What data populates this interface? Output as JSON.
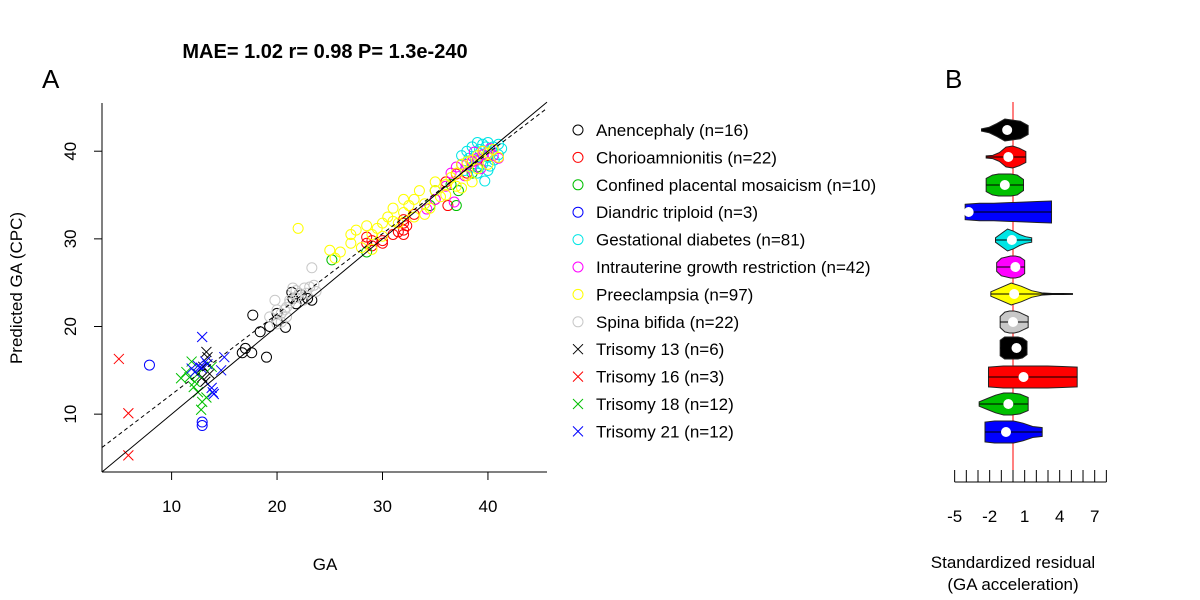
{
  "chart_data": [
    {
      "type": "scatter",
      "panel_label": "A",
      "title": "MAE= 1.02  r= 0.98  P= 1.3e-240",
      "xlabel": "GA",
      "ylabel": "Predicted GA (CPC)",
      "xlim": [
        3.4,
        45.6
      ],
      "ylim": [
        3.4,
        45.5
      ],
      "xticks": [
        10,
        20,
        30,
        40
      ],
      "yticks": [
        10,
        20,
        30,
        40
      ],
      "grid": false,
      "legend_position": "right",
      "lines": [
        {
          "style": "solid",
          "slope": 1,
          "intercept": 0
        },
        {
          "style": "dashed",
          "slope": 0.917,
          "intercept": 3.08
        }
      ],
      "series": [
        {
          "name": "Anencephaly (n=16)",
          "color": "#000000",
          "marker": "circle",
          "points": [
            [
              17.7,
              21.3
            ],
            [
              17,
              17.5
            ],
            [
              16.7,
              17
            ],
            [
              17.6,
              17
            ],
            [
              19,
              16.5
            ],
            [
              18.4,
              19.4
            ],
            [
              19.3,
              20
            ],
            [
              20,
              21.5
            ],
            [
              20,
              20.7
            ],
            [
              20.8,
              19.9
            ],
            [
              21.4,
              23.9
            ],
            [
              21.8,
              22.6
            ],
            [
              22.3,
              23.6
            ],
            [
              22.9,
              23.2
            ],
            [
              23.3,
              23
            ],
            [
              21.5,
              23.2
            ]
          ]
        },
        {
          "name": "Chorioamnionitis (n=22)",
          "color": "#ff0000",
          "marker": "circle",
          "points": [
            [
              28.5,
              29.5
            ],
            [
              28.5,
              30.2
            ],
            [
              29,
              29.2
            ],
            [
              29,
              29.8
            ],
            [
              30,
              29.5
            ],
            [
              30,
              29.8
            ],
            [
              31,
              30.5
            ],
            [
              32,
              31.8
            ],
            [
              32,
              32.2
            ],
            [
              32,
              30.5
            ],
            [
              32.3,
              31.5
            ],
            [
              36.2,
              33.8
            ],
            [
              35,
              34.5
            ],
            [
              31.5,
              30.8
            ],
            [
              33,
              32.8
            ],
            [
              38,
              37.5
            ],
            [
              39,
              39
            ],
            [
              37,
              37.4
            ],
            [
              36,
              36.5
            ],
            [
              40,
              39.5
            ],
            [
              38.5,
              38.8
            ],
            [
              32,
              31
            ]
          ]
        },
        {
          "name": "Confined placental mosaicism (n=10)",
          "color": "#00c000",
          "marker": "circle",
          "points": [
            [
              25.2,
              27.6
            ],
            [
              28.5,
              28.5
            ],
            [
              34.5,
              33.8
            ],
            [
              37,
              33.8
            ],
            [
              37.2,
              35.5
            ],
            [
              36.5,
              36.2
            ],
            [
              38.5,
              37.5
            ],
            [
              37.5,
              38.5
            ],
            [
              35,
              35.5
            ],
            [
              39,
              38.2
            ]
          ]
        },
        {
          "name": "Diandric triploid (n=3)",
          "color": "#0000ff",
          "marker": "circle",
          "points": [
            [
              7.9,
              15.6
            ],
            [
              12.9,
              9.1
            ],
            [
              12.9,
              8.7
            ]
          ]
        },
        {
          "name": "Gestational diabetes (n=81)",
          "color": "#00e5e5",
          "marker": "circle",
          "points": [
            [
              37.5,
              39.5
            ],
            [
              38,
              40
            ],
            [
              38.5,
              40.5
            ],
            [
              39,
              41
            ],
            [
              39.5,
              40.8
            ],
            [
              40,
              41
            ],
            [
              40.5,
              40.5
            ],
            [
              41,
              40.8
            ],
            [
              39,
              39.5
            ],
            [
              39.5,
              38.5
            ],
            [
              40,
              39.3
            ],
            [
              38.5,
              38.2
            ],
            [
              39,
              37.5
            ],
            [
              40,
              37.8
            ],
            [
              39.7,
              36.6
            ],
            [
              38.8,
              39
            ],
            [
              40.3,
              39.8
            ],
            [
              41.3,
              40.3
            ],
            [
              37.8,
              37.8
            ],
            [
              39.2,
              40.2
            ],
            [
              40.6,
              39
            ],
            [
              38.2,
              39.2
            ],
            [
              39.8,
              40.5
            ],
            [
              40.2,
              38.3
            ],
            [
              41,
              39.6
            ]
          ]
        },
        {
          "name": "Intrauterine growth restriction (n=42)",
          "color": "#ff00ff",
          "marker": "circle",
          "points": [
            [
              35,
              34.5
            ],
            [
              36.5,
              37.5
            ],
            [
              37,
              38.2
            ],
            [
              37.5,
              38.5
            ],
            [
              38,
              38.5
            ],
            [
              38.5,
              38.8
            ],
            [
              39,
              39.2
            ],
            [
              39.5,
              39.6
            ],
            [
              40,
              39.8
            ],
            [
              40.5,
              39.5
            ],
            [
              41,
              39.2
            ],
            [
              36,
              36
            ],
            [
              37.8,
              37.2
            ],
            [
              38.7,
              39.9
            ],
            [
              39.3,
              38
            ],
            [
              40.2,
              40.3
            ],
            [
              36.8,
              34.2
            ],
            [
              34.2,
              33.4
            ]
          ]
        },
        {
          "name": "Preeclampsia (n=97)",
          "color": "#ffff00",
          "marker": "circle",
          "points": [
            [
              22,
              31.2
            ],
            [
              25,
              28.7
            ],
            [
              25.5,
              27.8
            ],
            [
              26,
              28.5
            ],
            [
              27,
              30.5
            ],
            [
              27,
              29.5
            ],
            [
              27.5,
              31
            ],
            [
              28,
              29
            ],
            [
              28.5,
              31.5
            ],
            [
              29,
              30.5
            ],
            [
              29.5,
              31.2
            ],
            [
              30,
              30.3
            ],
            [
              30,
              31.8
            ],
            [
              30.5,
              32.5
            ],
            [
              31,
              32
            ],
            [
              31,
              33.5
            ],
            [
              31.5,
              31.8
            ],
            [
              32,
              33
            ],
            [
              32.5,
              33.8
            ],
            [
              33,
              32.5
            ],
            [
              33,
              34.5
            ],
            [
              33.5,
              35.5
            ],
            [
              34,
              34
            ],
            [
              34.5,
              33.5
            ],
            [
              35,
              35.5
            ],
            [
              35,
              36.5
            ],
            [
              35.5,
              34.8
            ],
            [
              36,
              36.2
            ],
            [
              36.5,
              37
            ],
            [
              37,
              36
            ],
            [
              37,
              37.5
            ],
            [
              37.5,
              38.5
            ],
            [
              38,
              37.2
            ],
            [
              38,
              38.8
            ],
            [
              38.5,
              39
            ],
            [
              39,
              38
            ],
            [
              39,
              39.5
            ],
            [
              39.5,
              40
            ],
            [
              40,
              38.5
            ],
            [
              40,
              39.8
            ],
            [
              40.5,
              40.2
            ],
            [
              41,
              39.3
            ],
            [
              36,
              35
            ],
            [
              34,
              32.8
            ],
            [
              37.5,
              35.8
            ],
            [
              29,
              28.8
            ],
            [
              32,
              34.5
            ],
            [
              38.5,
              36.5
            ]
          ]
        },
        {
          "name": "Spina bifida (n=22)",
          "color": "#c8c8c8",
          "marker": "circle",
          "points": [
            [
              23.3,
              26.7
            ],
            [
              19.8,
              23
            ],
            [
              20,
              21.9
            ],
            [
              20.4,
              21.5
            ],
            [
              20.9,
              22.2
            ],
            [
              21.2,
              22.7
            ],
            [
              21.5,
              24.4
            ],
            [
              21.8,
              24.1
            ],
            [
              22.1,
              23.8
            ],
            [
              22.6,
              24.4
            ],
            [
              23.1,
              24.5
            ],
            [
              23.5,
              24.7
            ],
            [
              23.7,
              24
            ],
            [
              20.9,
              21.1
            ],
            [
              20.4,
              20.5
            ],
            [
              19.3,
              21.1
            ],
            [
              21.2,
              23
            ],
            [
              21.8,
              23.3
            ],
            [
              22.8,
              23.8
            ],
            [
              22.5,
              23
            ],
            [
              20,
              20.3
            ],
            [
              20.7,
              21.9
            ]
          ]
        },
        {
          "name": "Trisomy 13 (n=6)",
          "color": "#000000",
          "marker": "x",
          "points": [
            [
              13.3,
              17.1
            ],
            [
              13.4,
              16.5
            ],
            [
              13.2,
              13.7
            ],
            [
              13,
              15.4
            ],
            [
              13.6,
              14.6
            ],
            [
              12.9,
              14.2
            ]
          ]
        },
        {
          "name": "Trisomy 16 (n=3)",
          "color": "#ff0000",
          "marker": "x",
          "points": [
            [
              5,
              16.3
            ],
            [
              5.9,
              10.1
            ],
            [
              5.9,
              5.3
            ]
          ]
        },
        {
          "name": "Trisomy 18 (n=12)",
          "color": "#00c000",
          "marker": "x",
          "points": [
            [
              10.9,
              14.1
            ],
            [
              11.9,
              16
            ],
            [
              12.1,
              13.1
            ],
            [
              12.5,
              12.5
            ],
            [
              12.9,
              11.4
            ],
            [
              12.8,
              10.5
            ],
            [
              11.7,
              14.2
            ],
            [
              12.2,
              13.7
            ],
            [
              13.3,
              11.9
            ],
            [
              11.4,
              14.8
            ],
            [
              12.5,
              14.6
            ],
            [
              13.8,
              15.4
            ]
          ]
        },
        {
          "name": "Trisomy 21 (n=12)",
          "color": "#0000ff",
          "marker": "x",
          "points": [
            [
              12.9,
              18.8
            ],
            [
              15,
              16.5
            ],
            [
              14.7,
              15
            ],
            [
              13.9,
              12.5
            ],
            [
              14,
              12.3
            ],
            [
              12.5,
              15.5
            ],
            [
              12.2,
              14.8
            ],
            [
              12.8,
              15.3
            ],
            [
              13.2,
              16
            ],
            [
              13.8,
              13
            ],
            [
              13.4,
              15.7
            ],
            [
              11.9,
              15.2
            ]
          ]
        }
      ]
    },
    {
      "type": "violin",
      "panel_label": "B",
      "xlabel": "Standardized residual",
      "xlabel2": "(GA acceleration)",
      "xlim": [
        -5,
        8
      ],
      "xticks": [
        -5,
        -2,
        1,
        4,
        7
      ],
      "minor_ticks": [
        -5,
        -4,
        -3,
        -2,
        -1,
        0,
        1,
        2,
        3,
        4,
        5,
        6,
        7,
        8
      ],
      "reference_line": {
        "value": 0,
        "color": "#ff0000"
      },
      "groups": [
        {
          "color": "#000000",
          "min": -2.7,
          "median": -0.5,
          "max": 1.3,
          "density": [
            0.1,
            0.25,
            0.6,
            1,
            0.9,
            0.8,
            0.4
          ]
        },
        {
          "color": "#ff0000",
          "min": -2.3,
          "median": -0.4,
          "max": 1.1,
          "density": [
            0.1,
            0.15,
            0.4,
            0.9,
            1,
            0.8,
            0.5
          ]
        },
        {
          "color": "#00c000",
          "min": -2.3,
          "median": -0.7,
          "max": 0.9,
          "density": [
            0.6,
            0.9,
            1,
            1,
            1,
            0.9,
            0.5
          ]
        },
        {
          "color": "#0000ff",
          "min": -4.1,
          "median": -3.8,
          "max": 3.3,
          "density": [
            0.7,
            0.8,
            0.8,
            0.85,
            0.9,
            0.95,
            1
          ]
        },
        {
          "color": "#00e5e5",
          "min": -1.5,
          "median": -0.1,
          "max": 1.6,
          "density": [
            0.2,
            0.6,
            1,
            0.8,
            0.5,
            0.3,
            0.2
          ]
        },
        {
          "color": "#ff00ff",
          "min": -1.4,
          "median": 0.2,
          "max": 1.0,
          "density": [
            0.4,
            0.8,
            0.9,
            1,
            1,
            0.9,
            0.6
          ]
        },
        {
          "color": "#ffff00",
          "min": -1.9,
          "median": 0.1,
          "max": 5.1,
          "density": [
            0.2,
            0.6,
            1,
            0.7,
            0.3,
            0.1,
            0.05,
            0.05,
            0.03
          ]
        },
        {
          "color": "#c8c8c8",
          "min": -1.1,
          "median": 0,
          "max": 1.3,
          "density": [
            0.5,
            0.9,
            1,
            1,
            0.9,
            0.7,
            0.5
          ]
        },
        {
          "color": "#000000",
          "min": -1.1,
          "median": 0.3,
          "max": 1.2,
          "density": [
            0.7,
            1,
            1,
            1,
            1,
            0.9,
            0.6
          ]
        },
        {
          "color": "#ff0000",
          "min": -2.1,
          "median": 0.9,
          "max": 5.5,
          "density": [
            0.9,
            1,
            1,
            1,
            1,
            0.95,
            0.9
          ]
        },
        {
          "color": "#00c000",
          "min": -2.9,
          "median": -0.4,
          "max": 1.3,
          "density": [
            0.2,
            0.5,
            0.8,
            1,
            1,
            0.9,
            0.6
          ]
        },
        {
          "color": "#0000ff",
          "min": -2.4,
          "median": -0.6,
          "max": 2.5,
          "density": [
            0.9,
            1,
            1,
            1,
            0.8,
            0.5,
            0.4
          ]
        }
      ]
    }
  ]
}
